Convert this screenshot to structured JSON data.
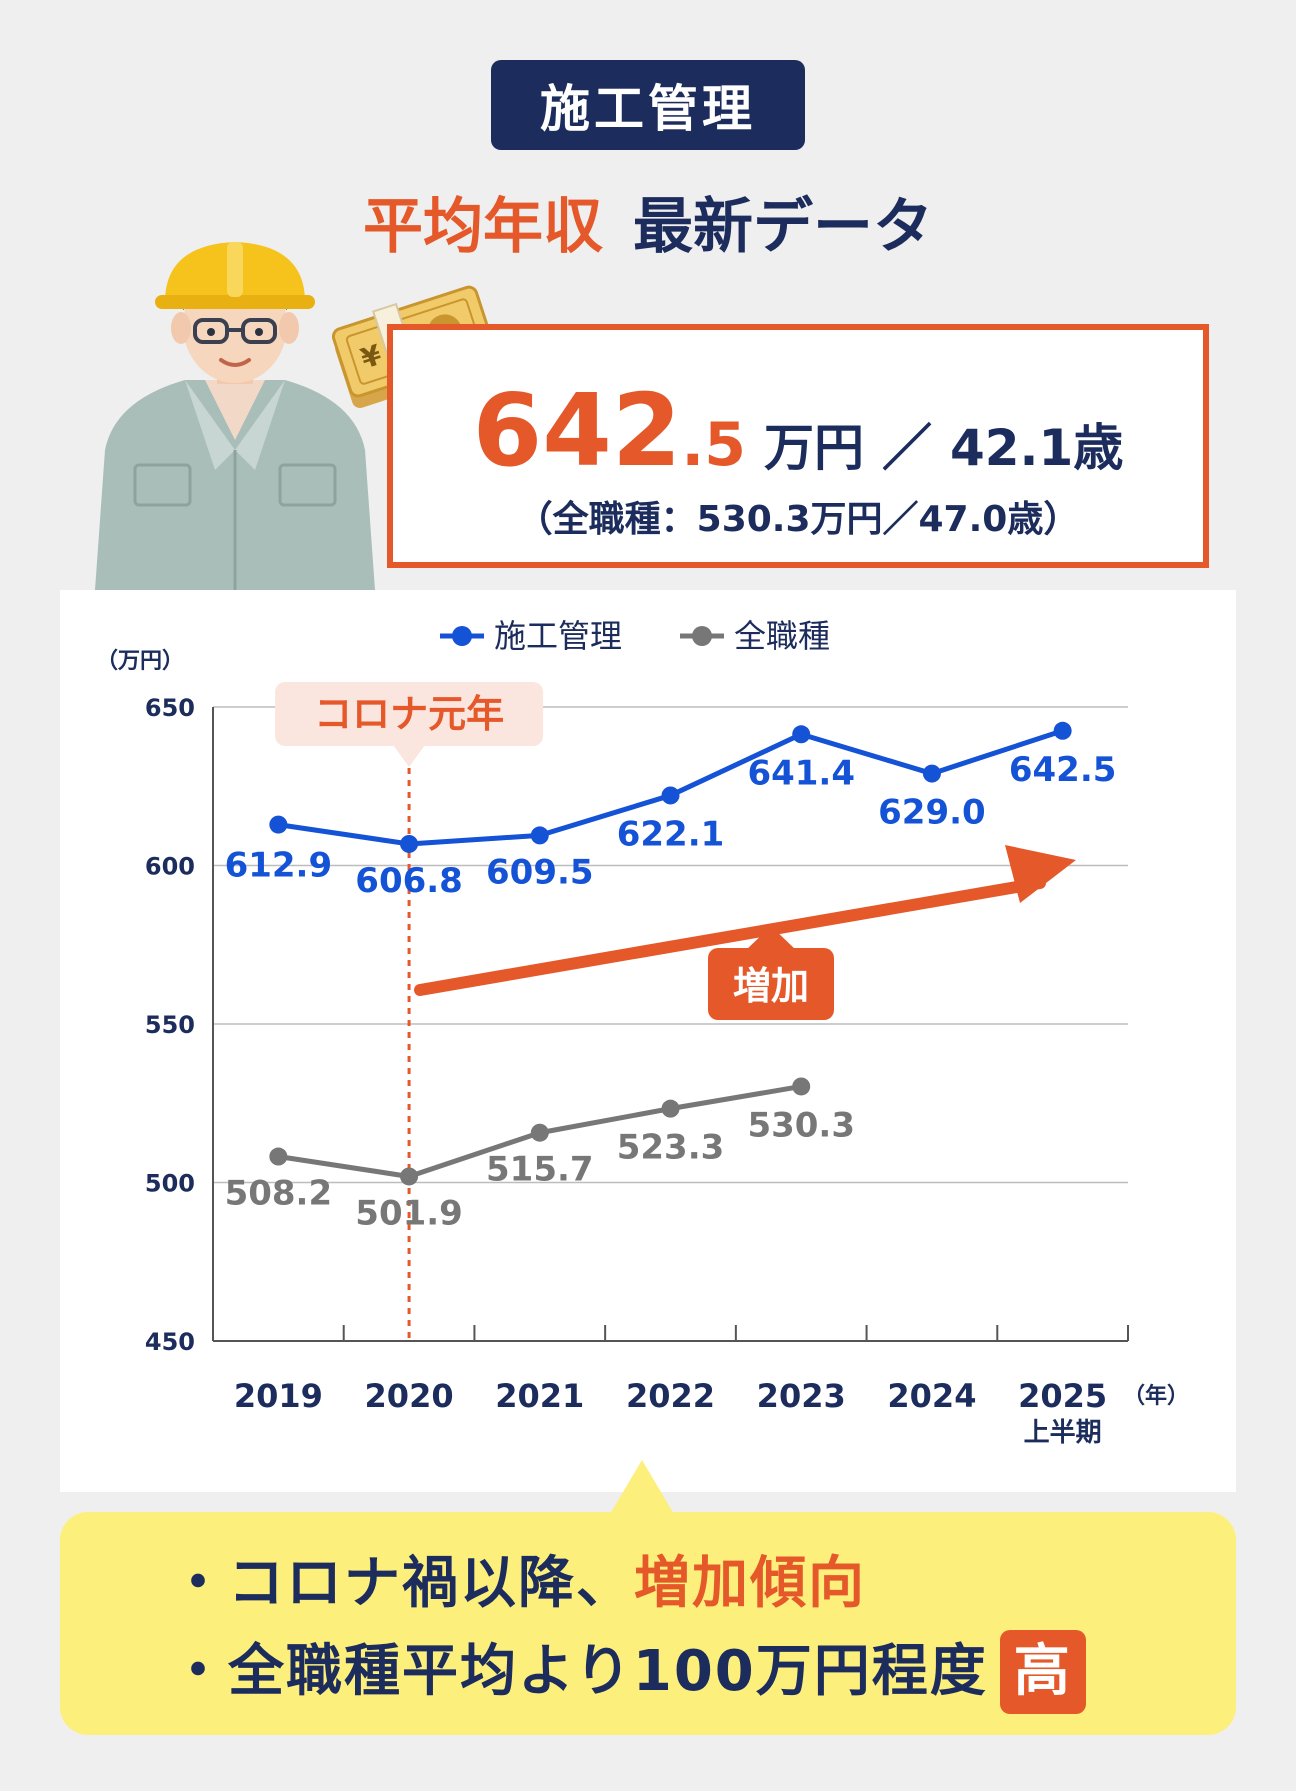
{
  "header": {
    "category": "施工管理",
    "headline_accent": "平均年収",
    "headline_rest": "最新データ"
  },
  "stat": {
    "value_int": "642",
    "value_dec": ".5",
    "unit": "万円",
    "separator": "／",
    "age": "42.1歳",
    "sub": "（全職種：530.3万円／47.0歳）"
  },
  "icons": [
    "worker-illustration",
    "yen-banknote-icon"
  ],
  "colors": {
    "accent": "#e5582a",
    "navy": "#1c2c5c",
    "blue": "#1452d6",
    "gray": "#777777",
    "callout": "#fdef7b"
  },
  "chart_data": {
    "type": "line",
    "categories": [
      "2019",
      "2020",
      "2021",
      "2022",
      "2023",
      "2024",
      "2025"
    ],
    "category_sub": [
      "",
      "",
      "",
      "",
      "",
      "",
      "上半期"
    ],
    "x_unit": "（年）",
    "ylabel": "（万円）",
    "ylim": [
      450,
      650
    ],
    "yticks": [
      450,
      500,
      550,
      600,
      650
    ],
    "grid": true,
    "legend_position": "top-center",
    "series": [
      {
        "name": "施工管理",
        "color": "#1452d6",
        "values": [
          612.9,
          606.8,
          609.5,
          622.1,
          641.4,
          629.0,
          642.5
        ],
        "labels": [
          "612.9",
          "606.8",
          "609.5",
          "622.1",
          "641.4",
          "629.0",
          "642.5"
        ]
      },
      {
        "name": "全職種",
        "color": "#777777",
        "values": [
          508.2,
          501.9,
          515.7,
          523.3,
          530.3,
          null,
          null
        ],
        "labels": [
          "508.2",
          "501.9",
          "515.7",
          "523.3",
          "530.3",
          "",
          ""
        ]
      }
    ],
    "annotations": [
      {
        "text": "コロナ元年",
        "category": "2020"
      },
      {
        "text": "増加"
      }
    ]
  },
  "callout": {
    "line1_prefix": "・コロナ禍以降、",
    "line1_highlight": "増加傾向",
    "line2_prefix": "・全職種平均より100万円程度",
    "line2_badge": "高"
  }
}
